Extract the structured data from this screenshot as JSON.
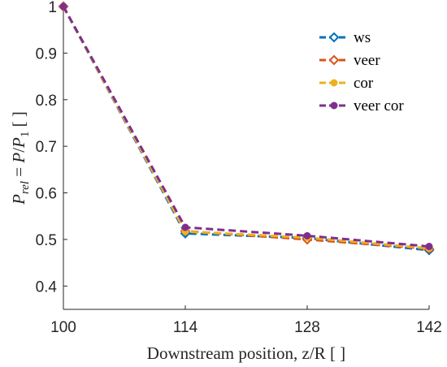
{
  "chart_data": {
    "type": "line",
    "x": [
      100,
      114,
      128,
      142
    ],
    "xlabel": "Downstream position, z/R [ ]",
    "ylabel_main": "P",
    "ylabel_sub": "rel",
    "ylabel_rest": "= P/P",
    "ylabel_rest_sub": "1",
    "ylabel_unit": "[ ]",
    "xlim": [
      100,
      142
    ],
    "ylim": [
      0.35,
      1.0
    ],
    "xticks": [
      "100",
      "114",
      "128",
      "142"
    ],
    "yticks": [
      "0.4",
      "0.5",
      "0.6",
      "0.7",
      "0.8",
      "0.9",
      "1"
    ],
    "ytick_values": [
      0.4,
      0.5,
      0.6,
      0.7,
      0.8,
      0.9,
      1.0
    ],
    "grid": false,
    "legend_position": "top-right",
    "series": [
      {
        "name": "ws",
        "values": [
          1.0,
          0.513,
          0.503,
          0.477
        ],
        "color": "#0072BD",
        "marker": "diamond-open"
      },
      {
        "name": "veer",
        "values": [
          1.0,
          0.518,
          0.5,
          0.48
        ],
        "color": "#D95319",
        "marker": "diamond-open"
      },
      {
        "name": "cor",
        "values": [
          1.0,
          0.517,
          0.504,
          0.481
        ],
        "color": "#EDB120",
        "marker": "circle-filled"
      },
      {
        "name": "veer cor",
        "values": [
          1.0,
          0.526,
          0.508,
          0.485
        ],
        "color": "#7E2F8E",
        "marker": "circle-filled"
      }
    ]
  }
}
